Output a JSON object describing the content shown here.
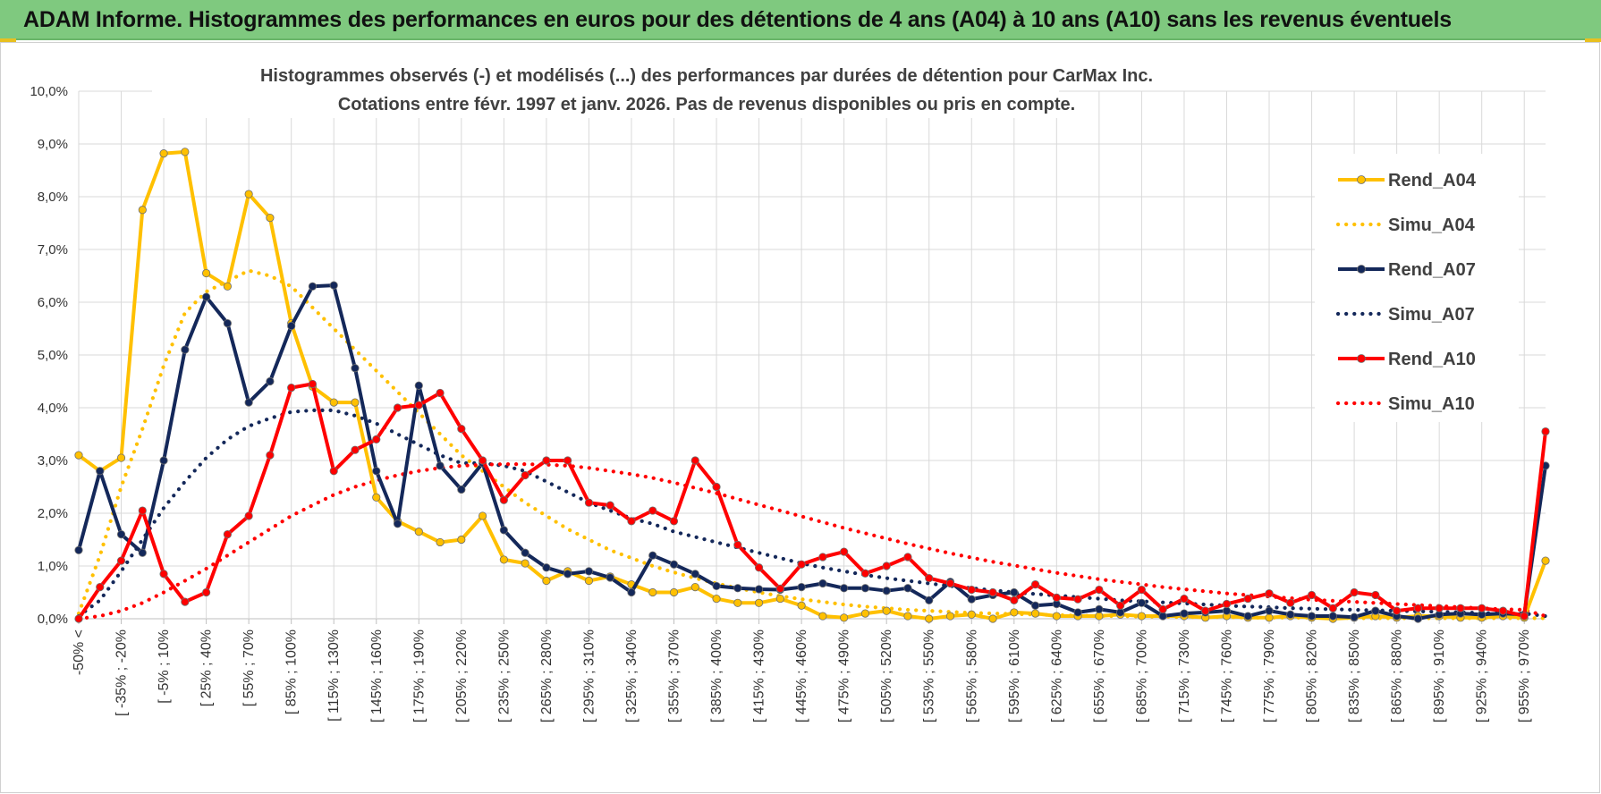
{
  "banner": {
    "title": "ADAM Informe. Histogrammes des performances en euros pour des détentions de 4 ans (A04) à 10 ans (A10) sans les revenus éventuels"
  },
  "colors": {
    "a04": "#FFC000",
    "a07": "#14285A",
    "a10": "#FF0000",
    "banner": "#7FC97F",
    "grid": "#D9D9D9"
  },
  "chart_data": {
    "type": "line",
    "title_line1": "Histogrammes observés (-) et modélisés (...) des performances par durées de détention pour CarMax Inc.",
    "title_line2": "Cotations entre févr. 1997 et janv. 2026. Pas de revenus disponibles ou pris en compte.",
    "ylim": [
      0,
      10
    ],
    "y_ticks": [
      "0,0%",
      "1,0%",
      "2,0%",
      "3,0%",
      "4,0%",
      "5,0%",
      "6,0%",
      "7,0%",
      "8,0%",
      "9,0%",
      "10,0%"
    ],
    "x_tick_labels": [
      "-50% <",
      "[ -35% ; -20%",
      "[ -5% ; 10%",
      "[ 25% ; 40%",
      "[ 55% ; 70%",
      "[ 85% ; 100%",
      "[ 115% ; 130%",
      "[ 145% ; 160%",
      "[ 175% ; 190%",
      "[ 205% ; 220%",
      "[ 235% ; 250%",
      "[ 265% ; 280%",
      "[ 295% ; 310%",
      "[ 325% ; 340%",
      "[ 355% ; 370%",
      "[ 385% ; 400%",
      "[ 415% ; 430%",
      "[ 445% ; 460%",
      "[ 475% ; 490%",
      "[ 505% ; 520%",
      "[ 535% ; 550%",
      "[ 565% ; 580%",
      "[ 595% ; 610%",
      "[ 625% ; 640%",
      "[ 655% ; 670%",
      "[ 685% ; 700%",
      "[ 715% ; 730%",
      "[ 745% ; 760%",
      "[ 775% ; 790%",
      "[ 805% ; 820%",
      "[ 835% ; 850%",
      "[ 865% ; 880%",
      "[ 895% ; 910%",
      "[ 925% ; 940%",
      "[ 955% ; 970%"
    ],
    "n_points": 70,
    "series": [
      {
        "name": "Rend_A04",
        "style": "solid",
        "color": "#FFC000",
        "values": [
          3.1,
          2.8,
          3.05,
          7.75,
          8.82,
          8.85,
          6.55,
          6.3,
          8.05,
          7.6,
          5.6,
          4.4,
          4.1,
          4.1,
          2.3,
          1.85,
          1.65,
          1.45,
          1.5,
          1.95,
          1.12,
          1.05,
          0.72,
          0.9,
          0.72,
          0.8,
          0.65,
          0.5,
          0.5,
          0.6,
          0.38,
          0.3,
          0.3,
          0.38,
          0.25,
          0.05,
          0.02,
          0.1,
          0.15,
          0.05,
          0.0,
          0.05,
          0.08,
          0.0,
          0.12,
          0.1,
          0.05,
          0.05,
          0.05,
          0.08,
          0.05,
          0.05,
          0.05,
          0.02,
          0.05,
          0.02,
          0.02,
          0.05,
          0.02,
          0.0,
          0.02,
          0.05,
          0.02,
          0.05,
          0.05,
          0.02,
          0.02,
          0.05,
          0.02,
          1.1
        ]
      },
      {
        "name": "Simu_A04",
        "style": "dotted",
        "color": "#FFC000",
        "values": [
          0.1,
          1.2,
          2.5,
          3.6,
          4.8,
          5.8,
          6.2,
          6.4,
          6.6,
          6.5,
          6.3,
          5.9,
          5.5,
          5.1,
          4.7,
          4.3,
          3.9,
          3.5,
          3.1,
          2.8,
          2.5,
          2.2,
          1.95,
          1.7,
          1.5,
          1.3,
          1.15,
          1.0,
          0.88,
          0.77,
          0.67,
          0.58,
          0.5,
          0.43,
          0.37,
          0.32,
          0.27,
          0.23,
          0.2,
          0.17,
          0.15,
          0.13,
          0.11,
          0.1,
          0.09,
          0.08,
          0.07,
          0.06,
          0.05,
          0.05,
          0.04,
          0.04,
          0.03,
          0.03,
          0.03,
          0.02,
          0.02,
          0.02,
          0.02,
          0.02,
          0.01,
          0.01,
          0.01,
          0.01,
          0.01,
          0.01,
          0.01,
          0.01,
          0.01,
          0.01
        ]
      },
      {
        "name": "Rend_A07",
        "style": "solid",
        "color": "#14285A",
        "values": [
          1.3,
          2.8,
          1.6,
          1.25,
          3.0,
          5.1,
          6.1,
          5.6,
          4.1,
          4.5,
          5.55,
          6.3,
          6.32,
          4.75,
          2.8,
          1.8,
          4.42,
          2.9,
          2.45,
          2.95,
          1.68,
          1.25,
          0.97,
          0.85,
          0.9,
          0.78,
          0.5,
          1.2,
          1.03,
          0.85,
          0.62,
          0.58,
          0.56,
          0.55,
          0.6,
          0.67,
          0.58,
          0.58,
          0.53,
          0.58,
          0.35,
          0.7,
          0.37,
          0.45,
          0.5,
          0.25,
          0.28,
          0.12,
          0.18,
          0.12,
          0.3,
          0.05,
          0.1,
          0.12,
          0.15,
          0.05,
          0.15,
          0.08,
          0.05,
          0.05,
          0.03,
          0.15,
          0.05,
          0.0,
          0.08,
          0.1,
          0.08,
          0.1,
          0.08,
          2.9
        ]
      },
      {
        "name": "Simu_A07",
        "style": "dotted",
        "color": "#14285A",
        "values": [
          0.05,
          0.35,
          0.9,
          1.5,
          2.1,
          2.6,
          3.05,
          3.4,
          3.65,
          3.8,
          3.92,
          3.95,
          3.95,
          3.85,
          3.7,
          3.5,
          3.3,
          3.1,
          2.95,
          2.95,
          2.9,
          2.8,
          2.6,
          2.4,
          2.2,
          2.05,
          1.9,
          1.8,
          1.65,
          1.55,
          1.45,
          1.35,
          1.25,
          1.15,
          1.05,
          0.97,
          0.9,
          0.83,
          0.77,
          0.72,
          0.67,
          0.62,
          0.58,
          0.54,
          0.5,
          0.47,
          0.44,
          0.41,
          0.38,
          0.35,
          0.33,
          0.31,
          0.29,
          0.27,
          0.25,
          0.23,
          0.22,
          0.2,
          0.19,
          0.18,
          0.17,
          0.16,
          0.15,
          0.14,
          0.13,
          0.12,
          0.11,
          0.1,
          0.1,
          0.05
        ]
      },
      {
        "name": "Rend_A10",
        "style": "solid",
        "color": "#FF0000",
        "values": [
          0.0,
          0.6,
          1.1,
          2.05,
          0.85,
          0.32,
          0.5,
          1.6,
          1.95,
          3.1,
          4.38,
          4.45,
          2.8,
          3.2,
          3.4,
          4.0,
          4.05,
          4.28,
          3.6,
          3.0,
          2.25,
          2.72,
          3.0,
          3.0,
          2.2,
          2.15,
          1.85,
          2.05,
          1.85,
          3.0,
          2.5,
          1.4,
          0.97,
          0.57,
          1.03,
          1.17,
          1.27,
          0.86,
          1.0,
          1.17,
          0.77,
          0.67,
          0.55,
          0.5,
          0.35,
          0.65,
          0.4,
          0.37,
          0.55,
          0.25,
          0.55,
          0.18,
          0.38,
          0.15,
          0.28,
          0.38,
          0.48,
          0.3,
          0.45,
          0.2,
          0.5,
          0.45,
          0.15,
          0.2,
          0.2,
          0.2,
          0.2,
          0.15,
          0.05,
          3.55
        ]
      },
      {
        "name": "Simu_A10",
        "style": "dotted",
        "color": "#FF0000",
        "values": [
          0.0,
          0.05,
          0.15,
          0.3,
          0.5,
          0.72,
          0.95,
          1.2,
          1.45,
          1.7,
          1.95,
          2.15,
          2.35,
          2.5,
          2.62,
          2.72,
          2.8,
          2.86,
          2.9,
          2.92,
          2.93,
          2.93,
          2.92,
          2.9,
          2.86,
          2.8,
          2.74,
          2.67,
          2.58,
          2.48,
          2.38,
          2.27,
          2.16,
          2.05,
          1.94,
          1.83,
          1.72,
          1.62,
          1.52,
          1.42,
          1.33,
          1.24,
          1.16,
          1.08,
          1.01,
          0.94,
          0.87,
          0.81,
          0.75,
          0.7,
          0.65,
          0.6,
          0.56,
          0.52,
          0.48,
          0.45,
          0.42,
          0.39,
          0.36,
          0.34,
          0.32,
          0.3,
          0.28,
          0.26,
          0.24,
          0.22,
          0.2,
          0.18,
          0.17,
          0.05
        ]
      }
    ],
    "legend_position": "right"
  }
}
